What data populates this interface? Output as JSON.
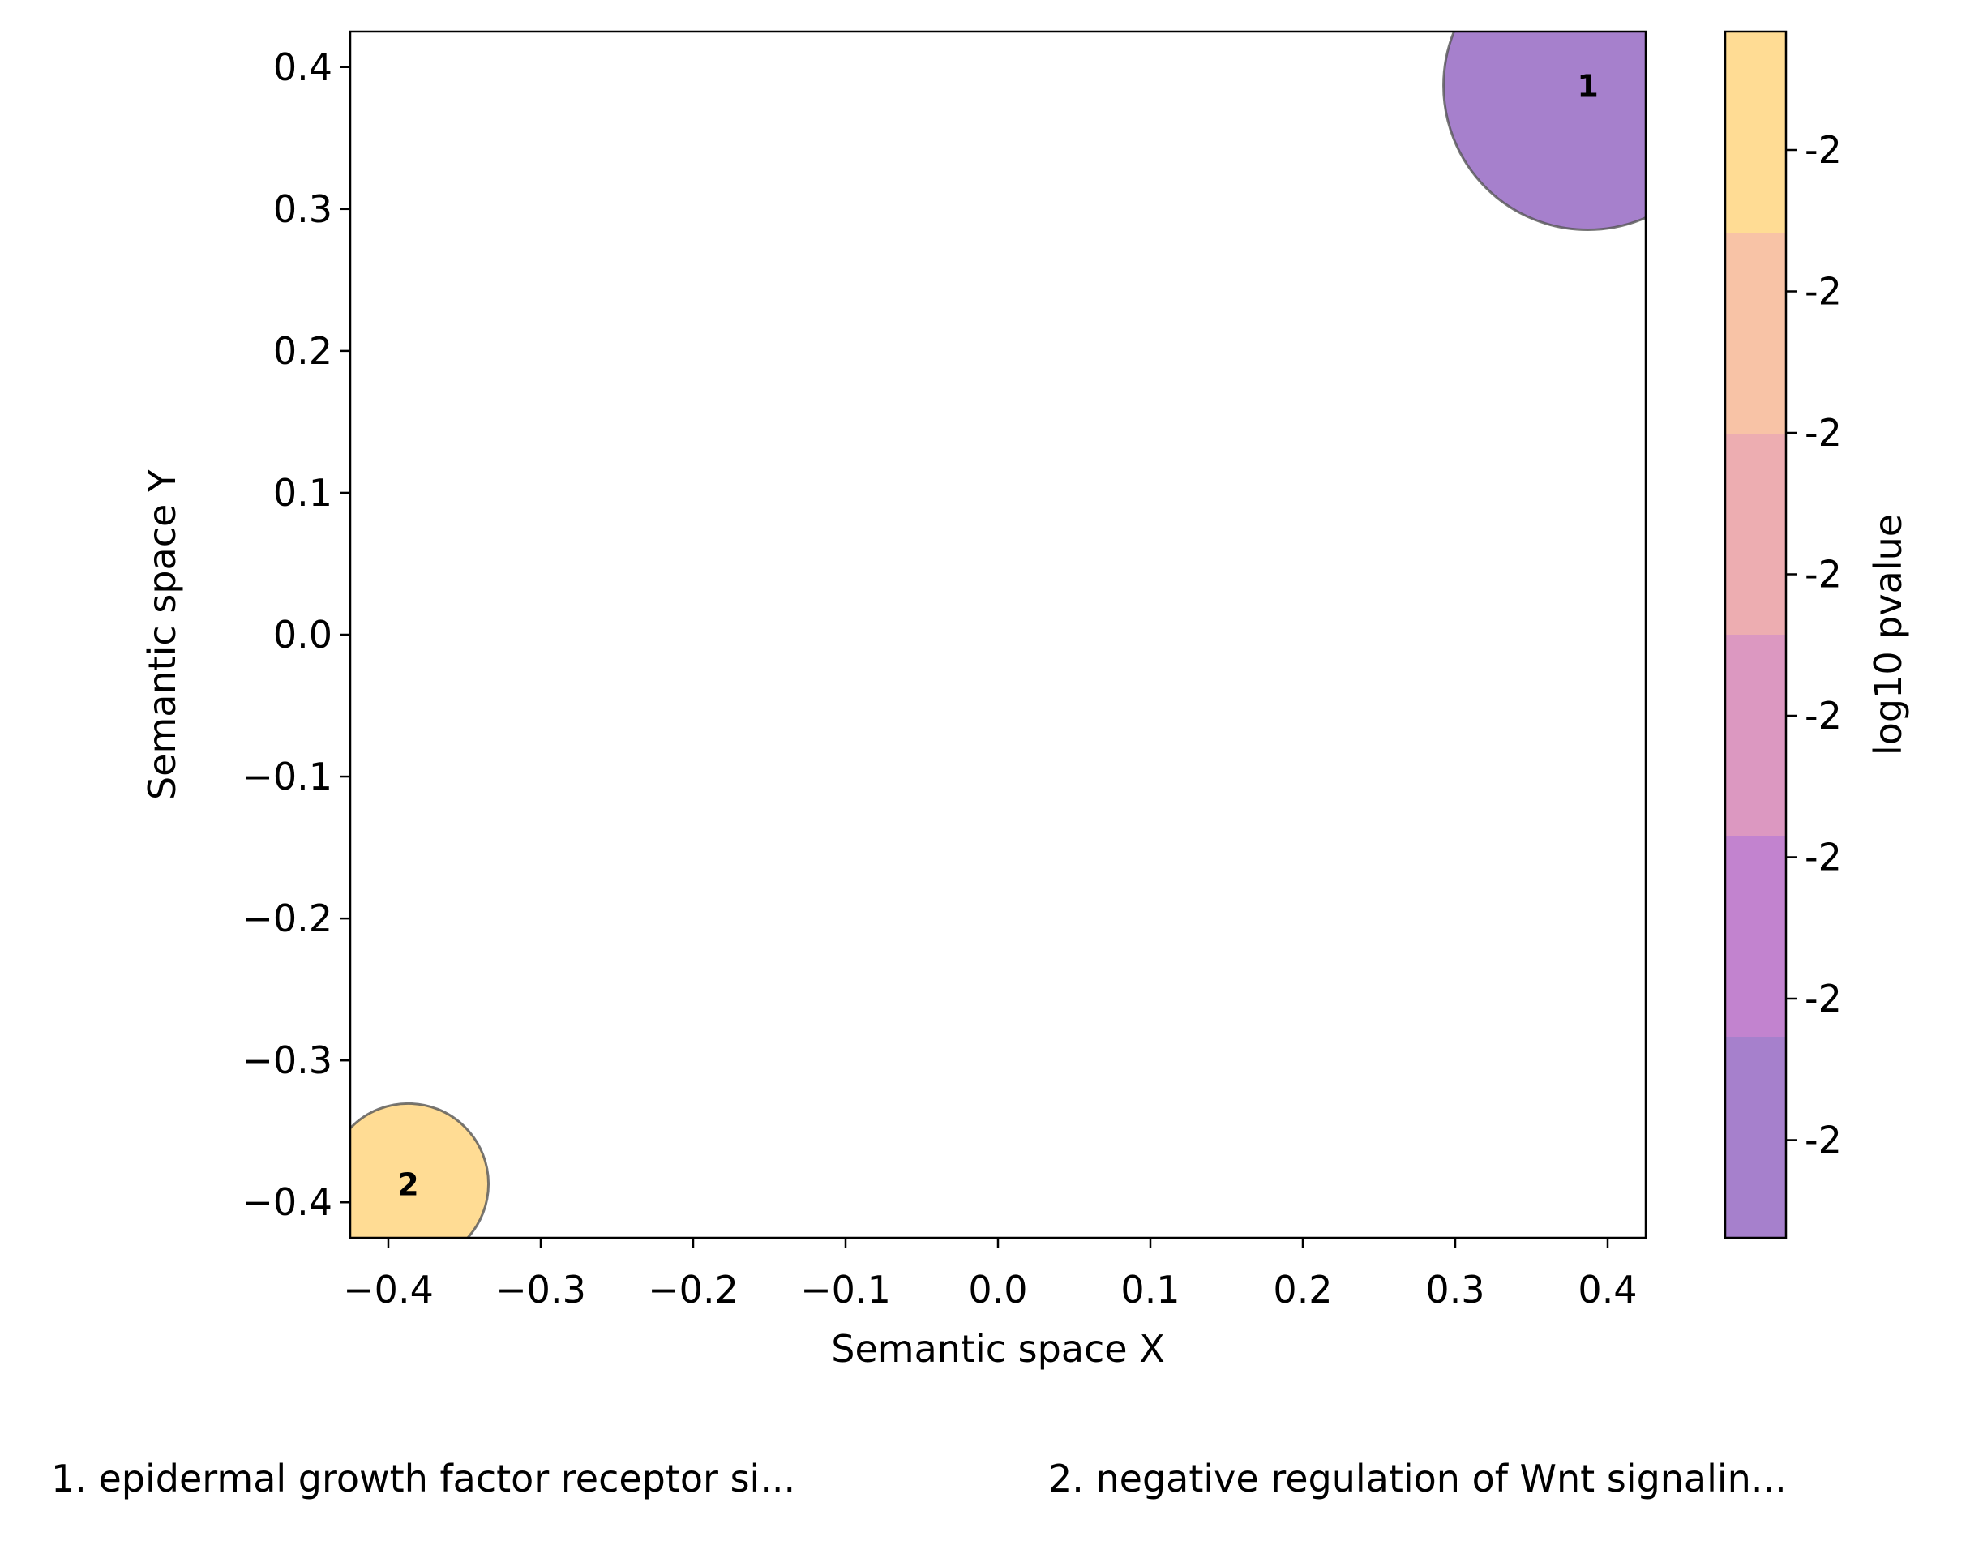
{
  "chart_data": {
    "type": "scatter",
    "title": "",
    "xlabel": "Semantic space X",
    "ylabel": "Semantic space Y",
    "xlim": [
      -0.425,
      0.425
    ],
    "ylim": [
      -0.425,
      0.425
    ],
    "xticks": [
      -0.4,
      -0.3,
      -0.2,
      -0.1,
      0.0,
      0.1,
      0.2,
      0.3,
      0.4
    ],
    "xtick_labels": [
      "−0.4",
      "−0.3",
      "−0.2",
      "−0.1",
      "0.0",
      "0.1",
      "0.2",
      "0.3",
      "0.4"
    ],
    "yticks": [
      0.4,
      0.3,
      0.2,
      0.1,
      0.0,
      -0.1,
      -0.2,
      -0.3,
      -0.4
    ],
    "ytick_labels": [
      "0.4",
      "0.3",
      "0.2",
      "0.1",
      "0.0",
      "−0.1",
      "−0.2",
      "−0.3",
      "−0.4"
    ],
    "grid": false,
    "points": [
      {
        "id": "1",
        "x": 0.387,
        "y": 0.387,
        "size_rel": 1.0,
        "color": "#a680cc"
      },
      {
        "id": "2",
        "x": -0.387,
        "y": -0.387,
        "size_rel": 0.31,
        "color": "#ffdc94"
      }
    ],
    "colorbar": {
      "label": "log10 pvalue",
      "tick_labels": [
        "-2",
        "-2",
        "-2",
        "-2",
        "-2",
        "-2",
        "-2",
        "-2"
      ],
      "colors_top_to_bottom": [
        "#ffdc94",
        "#f8c3a6",
        "#edadb1",
        "#dc98c1",
        "#c283cf",
        "#a680cc"
      ]
    },
    "footnotes": [
      "1. epidermal growth factor receptor si...",
      "2. negative regulation of Wnt signalin..."
    ]
  }
}
